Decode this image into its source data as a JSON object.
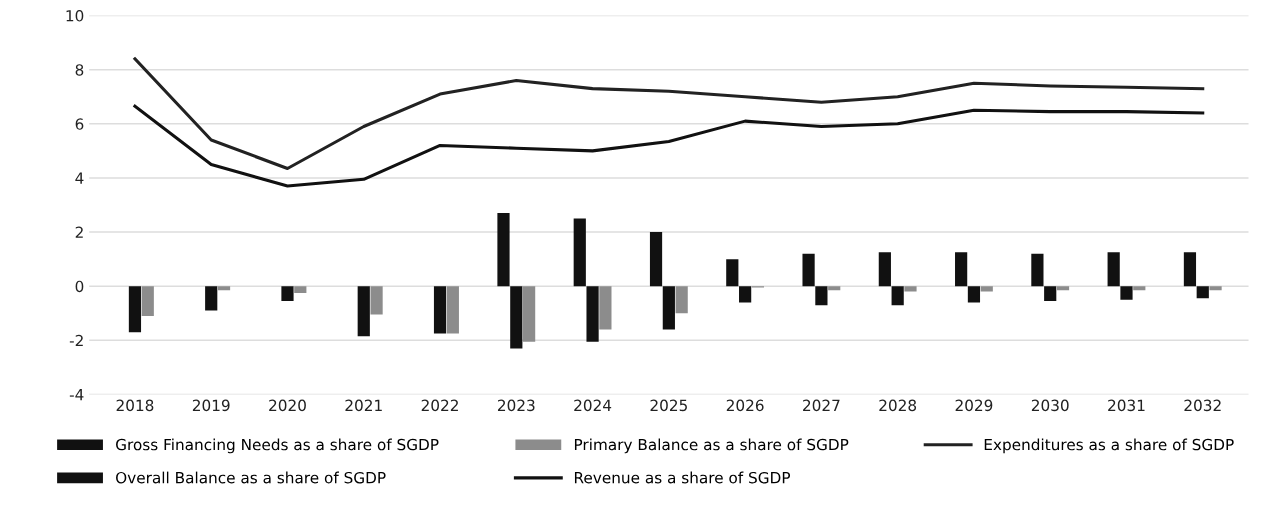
{
  "chart_data": {
    "type": "bar",
    "categories": [
      "2018",
      "2019",
      "2020",
      "2021",
      "2022",
      "2023",
      "2024",
      "2025",
      "2026",
      "2027",
      "2028",
      "2029",
      "2030",
      "2031",
      "2032"
    ],
    "series": [
      {
        "name": "Gross Financing Needs as a share of SGDP",
        "color": "#111111",
        "values": [
          null,
          null,
          null,
          null,
          null,
          2.7,
          2.5,
          2.0,
          1.0,
          1.2,
          1.25,
          1.25,
          1.2,
          1.25,
          1.25
        ]
      },
      {
        "name": "Overall Balance as a share of SGDP",
        "color": "#111111",
        "values": [
          -1.7,
          -0.9,
          -0.55,
          -1.85,
          -1.75,
          -2.3,
          -2.05,
          -1.6,
          -0.6,
          -0.7,
          -0.7,
          -0.6,
          -0.55,
          -0.5,
          -0.45
        ]
      },
      {
        "name": "Primary Balance as a share of SGDP",
        "color": "#8c8c8c",
        "values": [
          -1.1,
          -0.15,
          -0.25,
          -1.05,
          -1.75,
          -2.05,
          -1.6,
          -1.0,
          -0.05,
          -0.15,
          -0.2,
          -0.2,
          -0.15,
          -0.15,
          -0.15
        ]
      },
      {
        "name": "Revenue as a share of SGDP",
        "type": "line",
        "color": "#111111",
        "values": [
          6.65,
          4.5,
          3.7,
          3.95,
          5.2,
          5.1,
          5.0,
          5.35,
          6.1,
          5.9,
          6.0,
          6.5,
          6.45,
          6.45,
          6.4
        ]
      },
      {
        "name": "Expenditures as a share of SGDP",
        "type": "line",
        "color": "#222222",
        "values": [
          8.4,
          5.4,
          4.35,
          5.9,
          7.1,
          7.6,
          7.3,
          7.2,
          7.0,
          6.8,
          7.0,
          7.5,
          7.4,
          7.35,
          7.3
        ]
      }
    ],
    "ylim": [
      -4,
      10
    ],
    "yticks": [
      -4,
      -2,
      0,
      2,
      4,
      6,
      8,
      10
    ],
    "grid": "y",
    "legend": "bottom"
  }
}
